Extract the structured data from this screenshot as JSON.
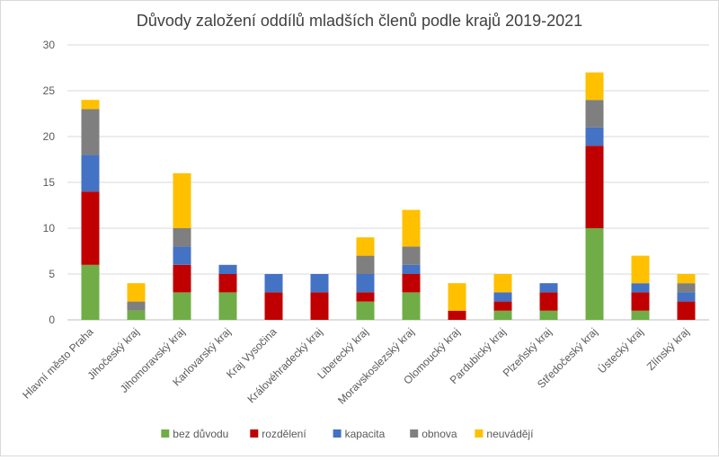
{
  "chart_data": {
    "type": "bar",
    "stacked": true,
    "title": "Důvody založení oddílů mladších členů podle krajů 2019-2021",
    "xlabel": "",
    "ylabel": "",
    "ylim": [
      0,
      30
    ],
    "yticks": [
      0,
      5,
      10,
      15,
      20,
      25,
      30
    ],
    "grid": true,
    "legend_position": "bottom",
    "categories": [
      "Hlavní město Praha",
      "Jihočeský kraj",
      "Jihomoravský kraj",
      "Karlovarský kraj",
      "Kraj Vysočina",
      "Královéhradecký kraj",
      "Liberecký kraj",
      "Moravskoslezský kraj",
      "Olomoucký kraj",
      "Pardubický kraj",
      "Plzeňský kraj",
      "Středočeský kraj",
      "Ústecký kraj",
      "Zlínský kraj"
    ],
    "series": [
      {
        "name": "bez důvodu",
        "color": "#70ad47",
        "values": [
          6,
          1,
          3,
          3,
          0,
          0,
          2,
          3,
          0,
          1,
          1,
          10,
          1,
          0
        ]
      },
      {
        "name": "rozdělení",
        "color": "#c00000",
        "values": [
          8,
          0,
          3,
          2,
          3,
          3,
          1,
          2,
          1,
          1,
          2,
          9,
          2,
          2
        ]
      },
      {
        "name": "kapacita",
        "color": "#4472c4",
        "values": [
          4,
          0,
          2,
          1,
          2,
          2,
          2,
          1,
          0,
          1,
          1,
          2,
          1,
          1
        ]
      },
      {
        "name": "obnova",
        "color": "#7f7f7f",
        "values": [
          5,
          1,
          2,
          0,
          0,
          0,
          2,
          2,
          0,
          0,
          0,
          3,
          0,
          1
        ]
      },
      {
        "name": "neuvádějí",
        "color": "#ffc000",
        "values": [
          1,
          2,
          6,
          0,
          0,
          0,
          2,
          4,
          3,
          2,
          0,
          3,
          3,
          1
        ]
      }
    ]
  }
}
